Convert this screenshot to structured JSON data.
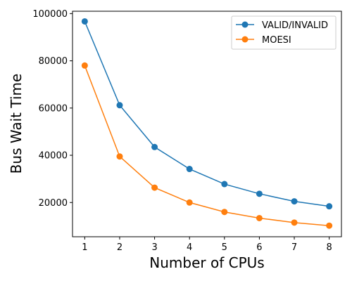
{
  "chart_data": {
    "type": "line",
    "xlabel": "Number of CPUs",
    "ylabel": "Bus Wait Time",
    "x": [
      1,
      2,
      3,
      4,
      5,
      6,
      7,
      8
    ],
    "xticks": [
      "1",
      "2",
      "3",
      "4",
      "5",
      "6",
      "7",
      "8"
    ],
    "yticks": [
      "20000",
      "40000",
      "60000",
      "80000",
      "100000"
    ],
    "yticks_values": [
      20000,
      40000,
      60000,
      80000,
      100000
    ],
    "xlim": [
      0.65,
      8.35
    ],
    "ylim": [
      5500,
      101000
    ],
    "grid": false,
    "legend_position": "top-right",
    "series": [
      {
        "name": "VALID/INVALID",
        "color": "#1f77b4",
        "values": [
          96700,
          61200,
          43500,
          34200,
          27800,
          23700,
          20500,
          18400
        ]
      },
      {
        "name": "MOESI",
        "color": "#ff7f0e",
        "values": [
          78000,
          39500,
          26300,
          20000,
          16000,
          13400,
          11500,
          10200
        ]
      }
    ]
  }
}
